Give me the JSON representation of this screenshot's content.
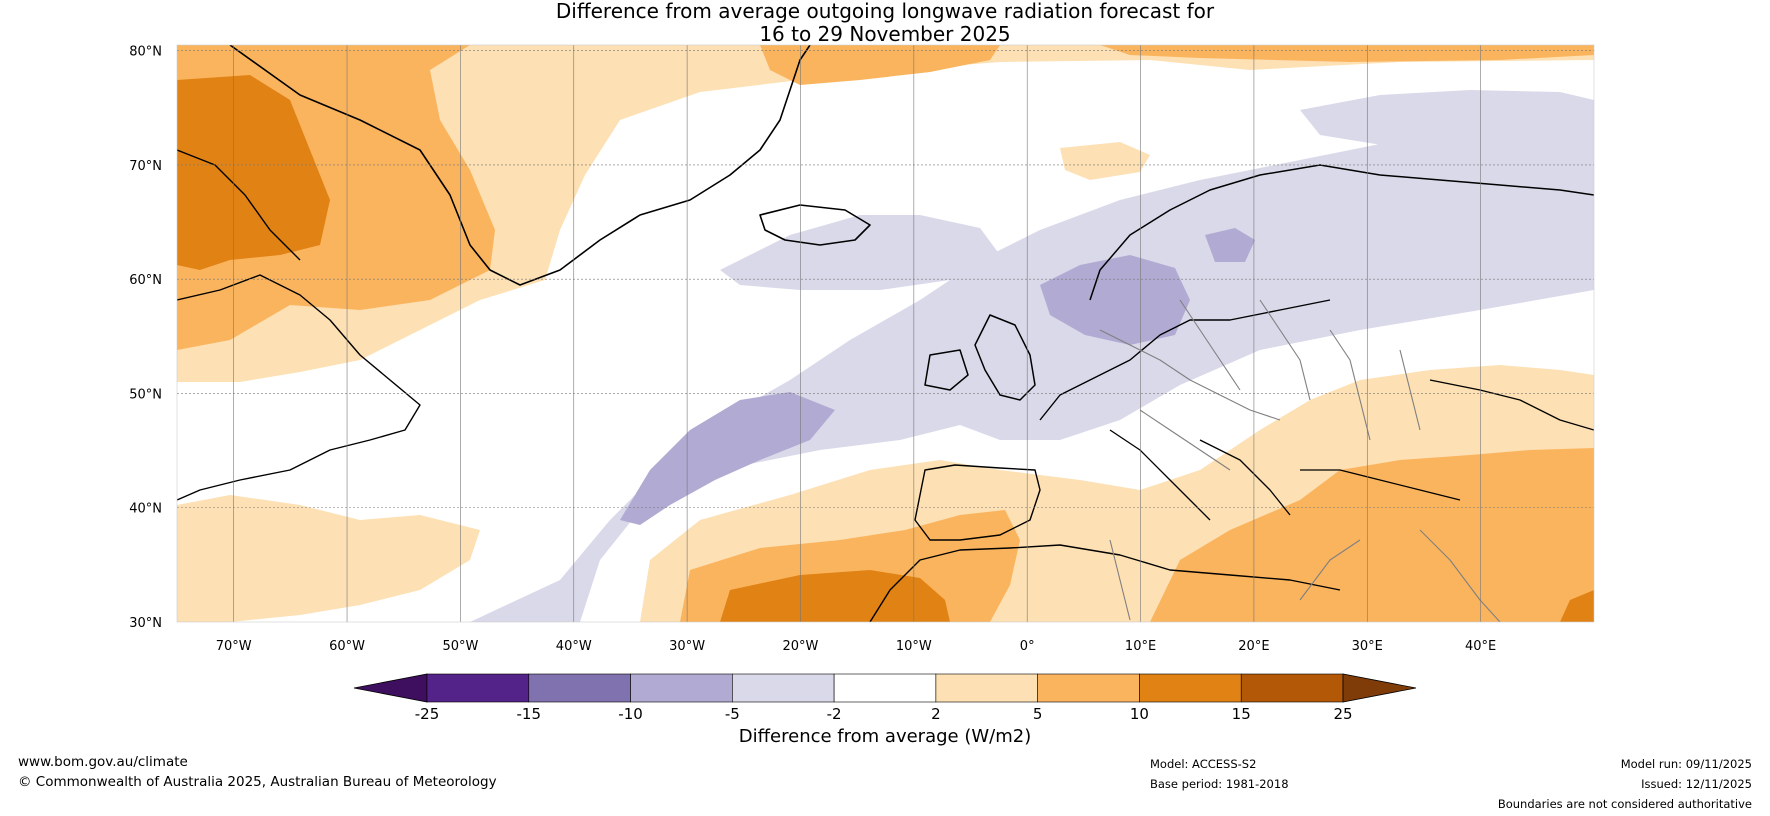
{
  "title": {
    "line1": "Difference from average outgoing longwave radiation forecast for",
    "line2": "16 to 29 November 2025"
  },
  "map": {
    "lat_labels": [
      "80°N",
      "70°N",
      "60°N",
      "50°N",
      "40°N",
      "30°N"
    ],
    "lon_labels": [
      "70°W",
      "60°W",
      "50°W",
      "40°W",
      "30°W",
      "20°W",
      "10°W",
      "0°",
      "10°E",
      "20°E",
      "30°E",
      "40°E"
    ],
    "land_color": "#000000",
    "border_color": "#808080"
  },
  "colorbar": {
    "title": "Difference from average (W/m2)",
    "ticks": [
      "-25",
      "-15",
      "-10",
      "-5",
      "-2",
      "2",
      "5",
      "10",
      "15",
      "25"
    ],
    "colors": [
      "#3f0f5f",
      "#54238a",
      "#8072ae",
      "#b1aad2",
      "#d9d9ea",
      "#ffffff",
      "#fde0b3",
      "#fbb45e",
      "#e08214",
      "#b35806",
      "#7f3b08"
    ]
  },
  "footer": {
    "website": "www.bom.gov.au/climate",
    "copyright": "© Commonwealth of Australia 2025, Australian Bureau of Meteorology",
    "model": "Model: ACCESS-S2",
    "base_period": "Base period: 1981-2018",
    "model_run": "Model run: 09/11/2025",
    "issued": "Issued: 12/11/2025",
    "disclaimer": "Boundaries are not considered authoritative"
  }
}
